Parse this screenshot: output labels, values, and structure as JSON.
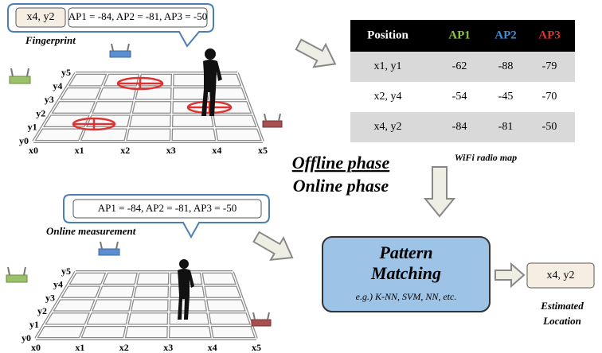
{
  "fingerprint": {
    "location": "x4, y2",
    "measurement": "AP1 = -84, AP2 = -81, AP3 = -50",
    "label": "Fingerprint"
  },
  "grid_top": {
    "x_labels": [
      "x0",
      "x1",
      "x2",
      "x3",
      "x4",
      "x5"
    ],
    "y_labels": [
      "y0",
      "y1",
      "y2",
      "y3",
      "y4",
      "y5"
    ]
  },
  "radio_map": {
    "columns": [
      "Position",
      "AP1",
      "AP2",
      "AP3"
    ],
    "rows": [
      [
        "x1, y1",
        -62,
        -88,
        -79
      ],
      [
        "x2, y4",
        -54,
        -45,
        -70
      ],
      [
        "x4, y2",
        -84,
        -81,
        -50
      ]
    ],
    "caption": "WiFi radio map"
  },
  "phases": [
    "Offline phase",
    "Online phase"
  ],
  "online": {
    "measurement": "AP1 = -84, AP2 = -81, AP3 = -50",
    "label": "Online measurement"
  },
  "grid_bottom": {
    "x_labels": [
      "x0",
      "x1",
      "x2",
      "x3",
      "x4",
      "x5"
    ],
    "y_labels": [
      "y0",
      "y1",
      "y2",
      "y3",
      "y4",
      "y5"
    ]
  },
  "matching": {
    "title": [
      "Pattern",
      "Matching"
    ],
    "methods": "e.g.) K-NN, SVM, NN, etc."
  },
  "result": {
    "location": "x4, y2",
    "caption": [
      "Estimated",
      "Location"
    ]
  }
}
